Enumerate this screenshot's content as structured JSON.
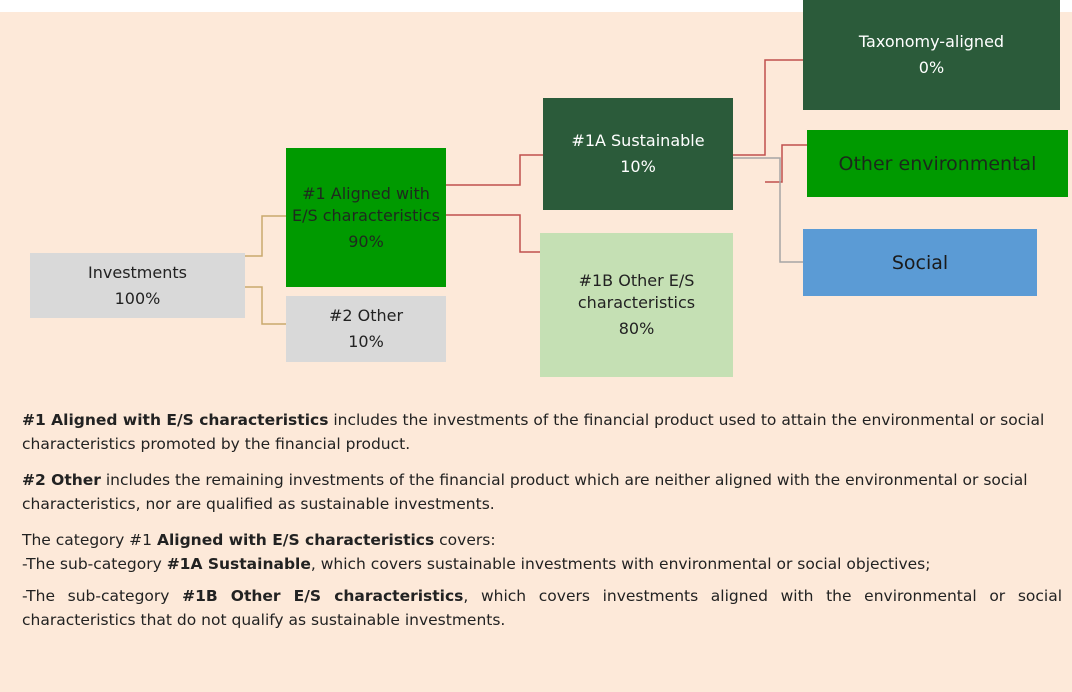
{
  "nodes": [
    {
      "id": "inv",
      "lines": [
        "Investments",
        "100%"
      ]
    },
    {
      "id": "n1",
      "lines": [
        "#1  Aligned with E/S characteristics",
        "90%"
      ]
    },
    {
      "id": "n2",
      "lines": [
        "#2 Other",
        "10%"
      ]
    },
    {
      "id": "n1a",
      "lines": [
        "#1A Sustainable",
        "10%"
      ]
    },
    {
      "id": "n1b",
      "lines": [
        "#1B Other E/S characteristics",
        "80%"
      ]
    },
    {
      "id": "tax",
      "lines": [
        "Taxonomy-aligned",
        "0%"
      ]
    },
    {
      "id": "env",
      "lines": [
        "Other environmental"
      ]
    },
    {
      "id": "soc",
      "lines": [
        "Social"
      ]
    }
  ],
  "paragraphs": [
    [
      {
        "text": "#1 Aligned with E/S characteristics",
        "bold": true
      },
      {
        "text": " includes the investments of the financial product used to attain the environmental or social characteristics promoted by the financial product.",
        "bold": false
      }
    ],
    [
      {
        "text": "#2 Other",
        "bold": true
      },
      {
        "text": " includes the remaining investments of the financial product which are neither aligned with the environmental or social characteristics, nor are qualified as sustainable investments.",
        "bold": false
      }
    ],
    [
      {
        "text": "The category #1 ",
        "bold": false
      },
      {
        "text": "Aligned with E/S characteristics",
        "bold": true
      },
      {
        "text": " covers:",
        "bold": false
      }
    ],
    [
      {
        "text": "-The sub-category ",
        "bold": false
      },
      {
        "text": "#1A Sustainable",
        "bold": true
      },
      {
        "text": ", which covers sustainable investments with environmental or social objectives;",
        "bold": false
      }
    ],
    [
      {
        "text": "-The sub-category ",
        "bold": false
      },
      {
        "text": "#1B Other E/S characteristics",
        "bold": true
      },
      {
        "text": ", which covers investments aligned with the environmental or social characteristics that do not qualify as sustainable investments.",
        "bold": false
      }
    ]
  ]
}
